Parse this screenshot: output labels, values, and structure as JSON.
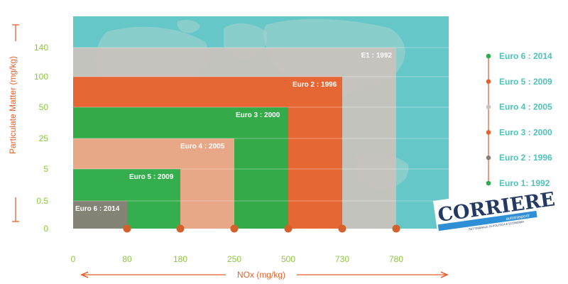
{
  "colors": {
    "ocean": "#66c7c8",
    "land": "#a8d4cf",
    "euro1": "#cbc2bd",
    "euro2": "#e8612c",
    "euro3": "#2bae4a",
    "euro4": "#f2a78b",
    "euro5": "#2bae4a",
    "euro6": "#8a7f78",
    "tick_text": "#8cc63f",
    "axis_title": "#e8612c",
    "marker": "#d4612c",
    "legend_text": "#4fc1b8",
    "legend_line": "#e8785a"
  },
  "chart_data": {
    "type": "bar",
    "title": "",
    "xlabel": "NOx (mg/kg)",
    "ylabel": "Particulate Matter (mg/kg)",
    "x_ticks": [
      "0",
      "80",
      "180",
      "250",
      "500",
      "730",
      "780"
    ],
    "y_ticks": [
      "0",
      "0.5",
      "5",
      "25",
      "50",
      "100",
      "140"
    ],
    "grid": true,
    "series": [
      {
        "name": "E1 : 1992",
        "nox_limit": 780,
        "pm_limit": 140
      },
      {
        "name": "Euro 2 : 1996",
        "nox_limit": 730,
        "pm_limit": 100
      },
      {
        "name": "Euro 3 : 2000",
        "nox_limit": 500,
        "pm_limit": 50
      },
      {
        "name": "Euro 4 : 2005",
        "nox_limit": 250,
        "pm_limit": 25
      },
      {
        "name": "Euro 5 : 2009",
        "nox_limit": 180,
        "pm_limit": 5
      },
      {
        "name": "Euro 6 : 2014",
        "nox_limit": 80,
        "pm_limit": 0.5
      }
    ],
    "legend": {
      "placement": "right",
      "entries": [
        {
          "label": "Euro 6 : 2014",
          "color": "#2bae4a"
        },
        {
          "label": "Euro 5 : 2009",
          "color": "#e8612c"
        },
        {
          "label": "Euro 4 : 2005",
          "color": "#cbc2bd"
        },
        {
          "label": "Euro 3 : 2000",
          "color": "#e8612c"
        },
        {
          "label": "Euro 2 : 1996",
          "color": "#8a7f78"
        },
        {
          "label": "Euro 1:  1992",
          "color": "#2bae4a"
        }
      ]
    }
  },
  "logo": {
    "name": "CORRIERE",
    "band": "autotrasporti",
    "small": "SETTIMANALE DI POLITICA E ECONOMIA"
  }
}
